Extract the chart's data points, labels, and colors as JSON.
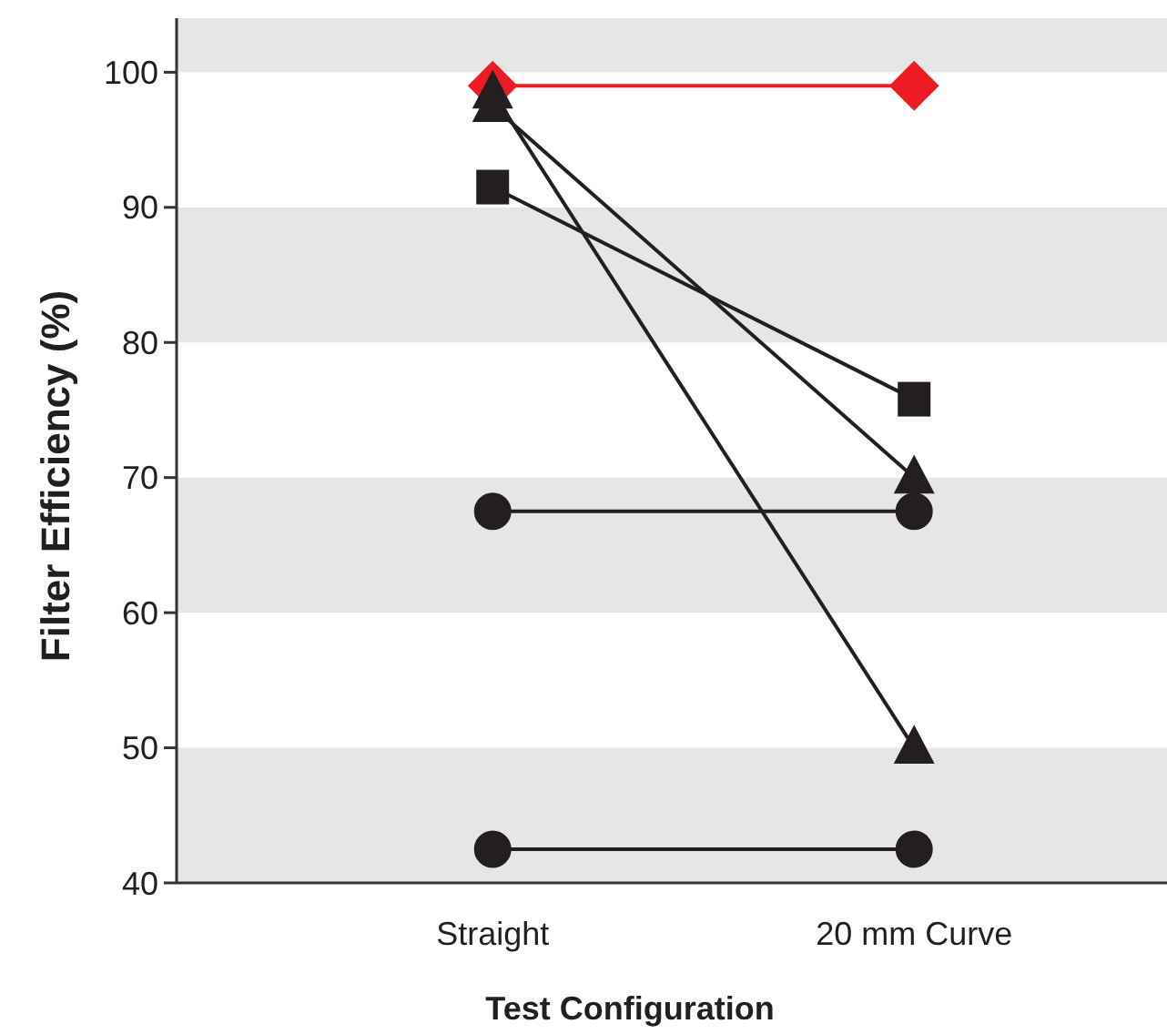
{
  "chart_data": {
    "type": "line",
    "xlabel": "Test Configuration",
    "ylabel": "Filter Efficiency (%)",
    "categories": [
      "Straight",
      "20 mm Curve"
    ],
    "series": [
      {
        "color": "#ed1c24",
        "marker": "diamond",
        "values": [
          99,
          99
        ]
      },
      {
        "color": "#231f20",
        "marker": "square",
        "values": [
          91.5,
          75.8
        ]
      },
      {
        "color": "#231f20",
        "marker": "triangle",
        "values": [
          97.5,
          70
        ]
      },
      {
        "color": "#231f20",
        "marker": "triangle",
        "values": [
          98.5,
          50
        ]
      },
      {
        "color": "#231f20",
        "marker": "circle",
        "values": [
          67.5,
          67.5
        ]
      },
      {
        "color": "#231f20",
        "marker": "circle",
        "values": [
          42.5,
          42.5
        ]
      }
    ],
    "ylim": [
      40,
      104
    ],
    "yticks": [
      40,
      50,
      60,
      70,
      80,
      90,
      100
    ],
    "bands": [
      {
        "axis": "y",
        "from": 40,
        "to": 50,
        "color": "#e6e6e6"
      },
      {
        "axis": "y",
        "from": 60,
        "to": 70,
        "color": "#e6e6e6"
      },
      {
        "axis": "y",
        "from": 80,
        "to": 90,
        "color": "#e6e6e6"
      },
      {
        "axis": "y",
        "from": 100,
        "to": 104,
        "color": "#e6e6e6"
      }
    ],
    "grid": false
  }
}
